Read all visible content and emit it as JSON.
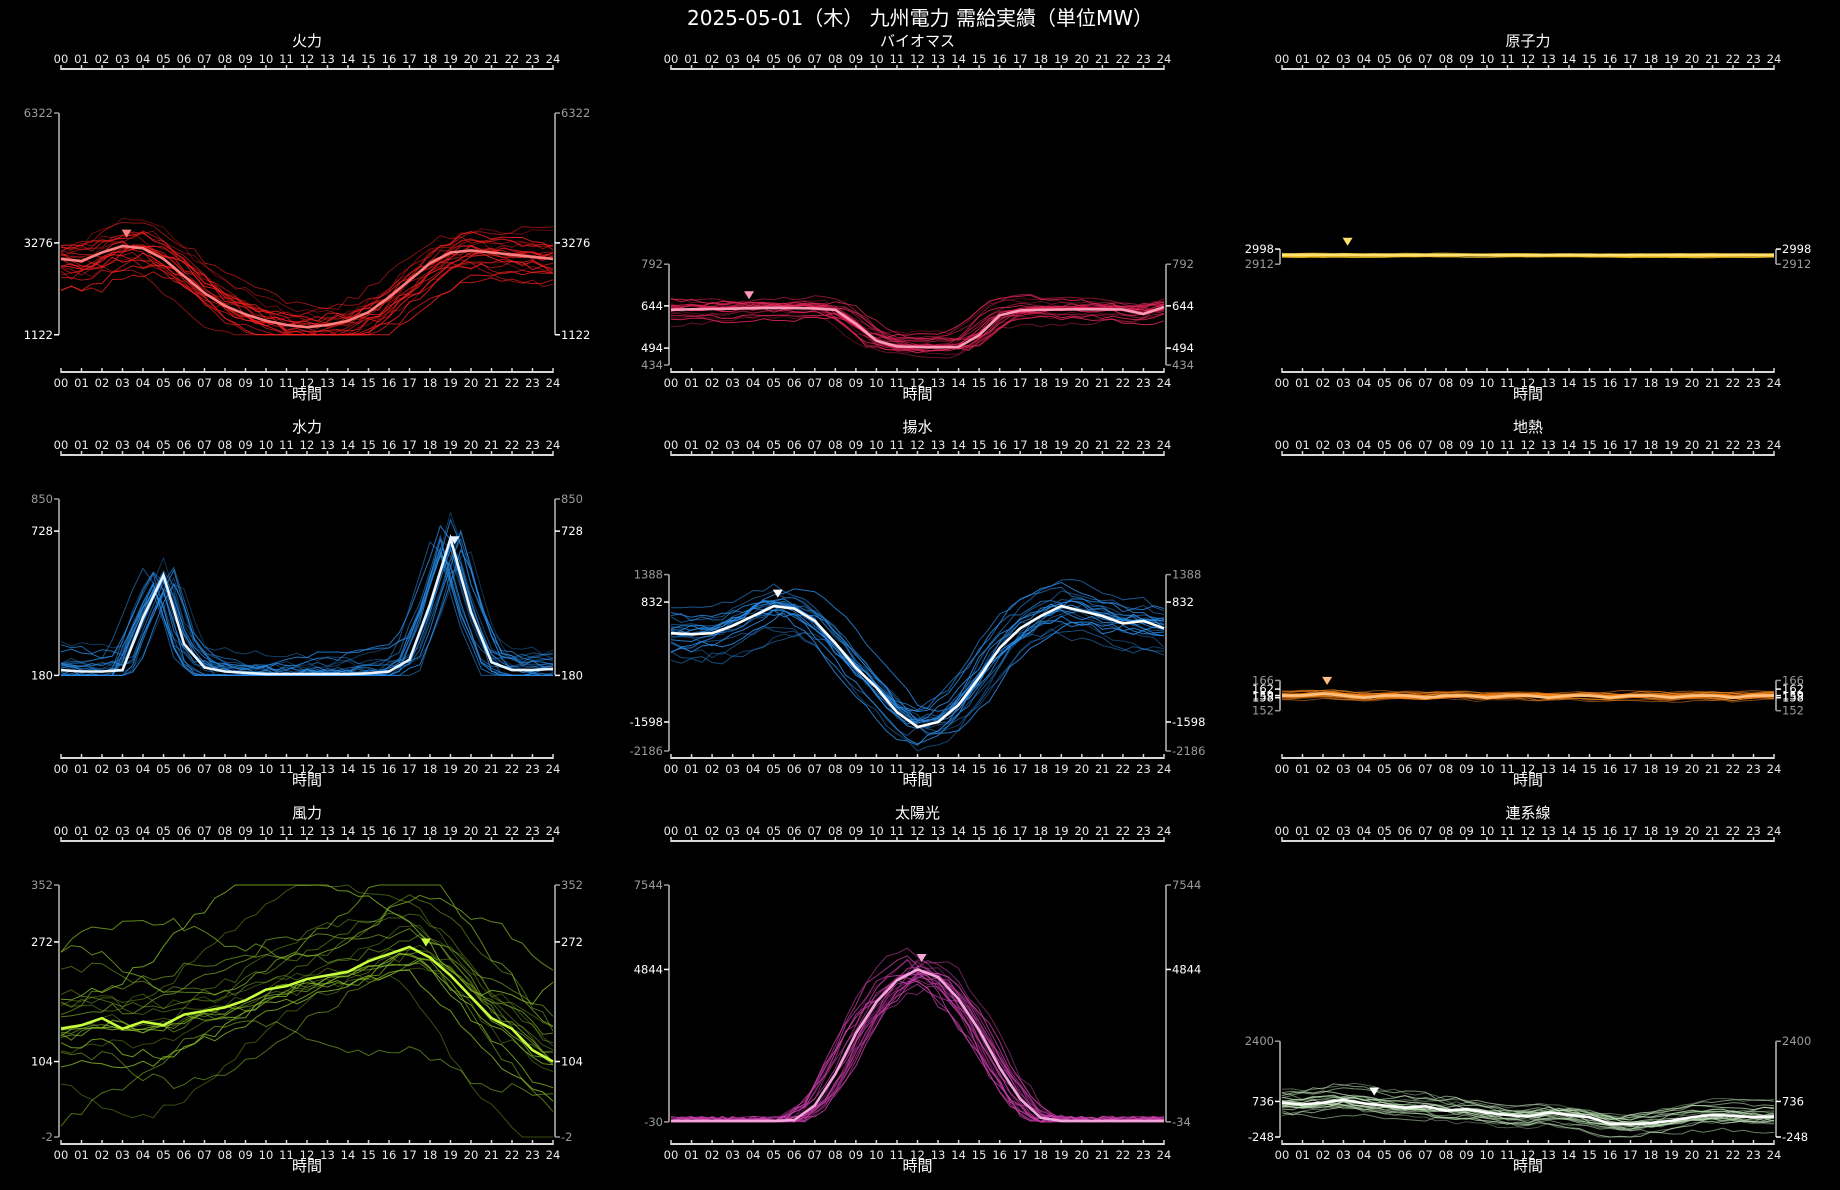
{
  "page": {
    "title": "2025-05-01（木） 九州電力 需給実績（単位MW）"
  },
  "hour_labels": [
    "00",
    "01",
    "02",
    "03",
    "04",
    "05",
    "06",
    "07",
    "08",
    "09",
    "10",
    "11",
    "12",
    "13",
    "14",
    "15",
    "16",
    "17",
    "18",
    "19",
    "20",
    "21",
    "22",
    "23",
    "24"
  ],
  "chart_data": [
    {
      "type": "line",
      "title": "火力",
      "xlabel": "時間",
      "color": "#ff2020",
      "highlight_color": "#ff8080",
      "x_range": [
        0,
        24
      ],
      "ylim": [
        1122,
        6322
      ],
      "yticks": [
        6322,
        3276,
        1122
      ],
      "ytick_bright": [
        3276,
        1122
      ],
      "marker_hour": 3.2,
      "highlight": [
        [
          0,
          2900
        ],
        [
          1,
          2850
        ],
        [
          2,
          3050
        ],
        [
          3,
          3200
        ],
        [
          4,
          3150
        ],
        [
          5,
          2900
        ],
        [
          6,
          2500
        ],
        [
          7,
          2100
        ],
        [
          8,
          1800
        ],
        [
          9,
          1600
        ],
        [
          10,
          1450
        ],
        [
          11,
          1350
        ],
        [
          12,
          1300
        ],
        [
          13,
          1350
        ],
        [
          14,
          1450
        ],
        [
          15,
          1650
        ],
        [
          16,
          2000
        ],
        [
          17,
          2400
        ],
        [
          18,
          2800
        ],
        [
          19,
          3050
        ],
        [
          20,
          3100
        ],
        [
          21,
          3050
        ],
        [
          22,
          3000
        ],
        [
          23,
          2950
        ],
        [
          24,
          2900
        ]
      ]
    },
    {
      "type": "line",
      "title": "バイオマス",
      "xlabel": "時間",
      "color": "#e8275a",
      "highlight_color": "#ff9ab8",
      "x_range": [
        0,
        24
      ],
      "ylim": [
        434,
        792
      ],
      "yticks": [
        792,
        644,
        494,
        434
      ],
      "ytick_bright": [
        644,
        494
      ],
      "marker_hour": 3.8,
      "highlight": [
        [
          0,
          630
        ],
        [
          1,
          632
        ],
        [
          2,
          633
        ],
        [
          3,
          634
        ],
        [
          4,
          636
        ],
        [
          5,
          637
        ],
        [
          6,
          636
        ],
        [
          7,
          635
        ],
        [
          8,
          630
        ],
        [
          9,
          580
        ],
        [
          10,
          520
        ],
        [
          11,
          500
        ],
        [
          12,
          498
        ],
        [
          13,
          497
        ],
        [
          14,
          498
        ],
        [
          15,
          540
        ],
        [
          16,
          610
        ],
        [
          17,
          628
        ],
        [
          18,
          630
        ],
        [
          19,
          631
        ],
        [
          20,
          632
        ],
        [
          21,
          632
        ],
        [
          22,
          631
        ],
        [
          23,
          615
        ],
        [
          24,
          640
        ]
      ]
    },
    {
      "type": "line",
      "title": "原子力",
      "xlabel": "時間",
      "color": "#f0c020",
      "highlight_color": "#ffe070",
      "x_range": [
        0,
        24
      ],
      "ylim": [
        2912,
        2998
      ],
      "yticks": [
        2998,
        2912
      ],
      "ytick_bright": [
        2998
      ],
      "marker_hour": 3.2,
      "highlight": [
        [
          0,
          2965
        ],
        [
          2,
          2966
        ],
        [
          4,
          2965
        ],
        [
          6,
          2964
        ],
        [
          8,
          2965
        ],
        [
          10,
          2963
        ],
        [
          12,
          2964
        ],
        [
          14,
          2965
        ],
        [
          16,
          2964
        ],
        [
          18,
          2965
        ],
        [
          20,
          2964
        ],
        [
          22,
          2965
        ],
        [
          24,
          2964
        ]
      ]
    },
    {
      "type": "line",
      "title": "水力",
      "xlabel": "時間",
      "color": "#2a8de8",
      "highlight_color": "#e8f4ff",
      "x_range": [
        0,
        24
      ],
      "ylim": [
        180,
        850
      ],
      "yticks": [
        850,
        728,
        180
      ],
      "ytick_bright": [
        728,
        180
      ],
      "marker_hour": 19.2,
      "highlight": [
        [
          0,
          200
        ],
        [
          1,
          195
        ],
        [
          2,
          195
        ],
        [
          3,
          200
        ],
        [
          4,
          400
        ],
        [
          5,
          560
        ],
        [
          6,
          300
        ],
        [
          7,
          210
        ],
        [
          8,
          195
        ],
        [
          9,
          190
        ],
        [
          10,
          185
        ],
        [
          11,
          185
        ],
        [
          12,
          185
        ],
        [
          13,
          185
        ],
        [
          14,
          185
        ],
        [
          15,
          188
        ],
        [
          16,
          195
        ],
        [
          17,
          240
        ],
        [
          18,
          450
        ],
        [
          19,
          700
        ],
        [
          20,
          420
        ],
        [
          21,
          230
        ],
        [
          22,
          200
        ],
        [
          23,
          200
        ],
        [
          24,
          205
        ]
      ]
    },
    {
      "type": "line",
      "title": "揚水",
      "xlabel": "時間",
      "color": "#2a8de8",
      "highlight_color": "#ffffff",
      "x_range": [
        0,
        24
      ],
      "ylim": [
        -2186,
        1388
      ],
      "yticks": [
        1388,
        832,
        -1598,
        -2186
      ],
      "ytick_bright": [
        832,
        -1598
      ],
      "marker_hour": 5.2,
      "highlight": [
        [
          0,
          200
        ],
        [
          1,
          180
        ],
        [
          2,
          200
        ],
        [
          3,
          350
        ],
        [
          4,
          550
        ],
        [
          5,
          750
        ],
        [
          6,
          700
        ],
        [
          7,
          450
        ],
        [
          8,
          0
        ],
        [
          9,
          -500
        ],
        [
          10,
          -900
        ],
        [
          11,
          -1400
        ],
        [
          12,
          -1700
        ],
        [
          13,
          -1600
        ],
        [
          14,
          -1250
        ],
        [
          15,
          -700
        ],
        [
          16,
          -100
        ],
        [
          17,
          300
        ],
        [
          18,
          550
        ],
        [
          19,
          750
        ],
        [
          20,
          650
        ],
        [
          21,
          550
        ],
        [
          22,
          400
        ],
        [
          23,
          450
        ],
        [
          24,
          300
        ]
      ]
    },
    {
      "type": "line",
      "title": "地熱",
      "xlabel": "時間",
      "color": "#ff8a1c",
      "highlight_color": "#ffc080",
      "x_range": [
        0,
        24
      ],
      "ylim": [
        152,
        166
      ],
      "yticks": [
        166,
        162,
        159,
        158,
        152
      ],
      "ytick_bright": [
        162,
        159,
        158
      ],
      "marker_hour": 2.2,
      "highlight": [
        [
          0,
          159
        ],
        [
          1,
          159
        ],
        [
          2,
          160
        ],
        [
          3,
          159
        ],
        [
          4,
          158
        ],
        [
          5,
          159
        ],
        [
          6,
          159
        ],
        [
          7,
          158
        ],
        [
          8,
          159
        ],
        [
          9,
          159
        ],
        [
          10,
          158
        ],
        [
          11,
          159
        ],
        [
          12,
          159
        ],
        [
          13,
          158
        ],
        [
          14,
          159
        ],
        [
          15,
          159
        ],
        [
          16,
          158
        ],
        [
          17,
          159
        ],
        [
          18,
          159
        ],
        [
          19,
          158
        ],
        [
          20,
          159
        ],
        [
          21,
          159
        ],
        [
          22,
          158
        ],
        [
          23,
          159
        ],
        [
          24,
          159
        ]
      ]
    },
    {
      "type": "line",
      "title": "風力",
      "xlabel": "時間",
      "color": "#8cc22a",
      "highlight_color": "#c8ff3c",
      "x_range": [
        0,
        24
      ],
      "ylim": [
        -2,
        352
      ],
      "yticks": [
        352,
        272,
        104,
        -2
      ],
      "ytick_bright": [
        272,
        104
      ],
      "marker_hour": 17.8,
      "highlight": [
        [
          0,
          150
        ],
        [
          1,
          155
        ],
        [
          2,
          165
        ],
        [
          3,
          150
        ],
        [
          4,
          160
        ],
        [
          5,
          155
        ],
        [
          6,
          170
        ],
        [
          7,
          175
        ],
        [
          8,
          180
        ],
        [
          9,
          190
        ],
        [
          10,
          205
        ],
        [
          11,
          210
        ],
        [
          12,
          220
        ],
        [
          13,
          225
        ],
        [
          14,
          230
        ],
        [
          15,
          245
        ],
        [
          16,
          255
        ],
        [
          17,
          265
        ],
        [
          18,
          250
        ],
        [
          19,
          225
        ],
        [
          20,
          195
        ],
        [
          21,
          165
        ],
        [
          22,
          150
        ],
        [
          23,
          120
        ],
        [
          24,
          104
        ]
      ]
    },
    {
      "type": "line",
      "title": "太陽光",
      "xlabel": "時間",
      "color": "#c63ca6",
      "highlight_color": "#f2a6dc",
      "x_range": [
        0,
        24
      ],
      "ylim": [
        -30,
        7544
      ],
      "yticks": [
        7544,
        4844,
        -30
      ],
      "ytick_bright": [
        4844
      ],
      "ytick_right": [
        7544,
        4844,
        -34
      ],
      "marker_hour": 12.2,
      "highlight": [
        [
          0,
          0
        ],
        [
          1,
          0
        ],
        [
          2,
          0
        ],
        [
          3,
          0
        ],
        [
          4,
          0
        ],
        [
          5,
          0
        ],
        [
          6,
          30
        ],
        [
          7,
          500
        ],
        [
          8,
          1500
        ],
        [
          9,
          2800
        ],
        [
          10,
          3800
        ],
        [
          11,
          4500
        ],
        [
          12,
          4844
        ],
        [
          13,
          4600
        ],
        [
          14,
          3900
        ],
        [
          15,
          2900
        ],
        [
          16,
          1700
        ],
        [
          17,
          700
        ],
        [
          18,
          100
        ],
        [
          19,
          0
        ],
        [
          20,
          0
        ],
        [
          21,
          0
        ],
        [
          22,
          0
        ],
        [
          23,
          0
        ],
        [
          24,
          0
        ]
      ]
    },
    {
      "type": "line",
      "title": "連系線",
      "xlabel": "時間",
      "color": "#b8dcb0",
      "highlight_color": "#ffffff",
      "x_range": [
        0,
        24
      ],
      "ylim": [
        -248,
        2400
      ],
      "yticks": [
        2400,
        736,
        -248
      ],
      "ytick_bright": [
        736,
        -248
      ],
      "marker_hour": 4.5,
      "highlight": [
        [
          0,
          700
        ],
        [
          1,
          650
        ],
        [
          2,
          700
        ],
        [
          3,
          780
        ],
        [
          4,
          680
        ],
        [
          5,
          620
        ],
        [
          6,
          560
        ],
        [
          7,
          600
        ],
        [
          8,
          480
        ],
        [
          9,
          520
        ],
        [
          10,
          420
        ],
        [
          11,
          360
        ],
        [
          12,
          320
        ],
        [
          13,
          430
        ],
        [
          14,
          360
        ],
        [
          15,
          300
        ],
        [
          16,
          120
        ],
        [
          17,
          100
        ],
        [
          18,
          140
        ],
        [
          19,
          200
        ],
        [
          20,
          300
        ],
        [
          21,
          360
        ],
        [
          22,
          340
        ],
        [
          23,
          300
        ],
        [
          24,
          320
        ]
      ]
    }
  ]
}
